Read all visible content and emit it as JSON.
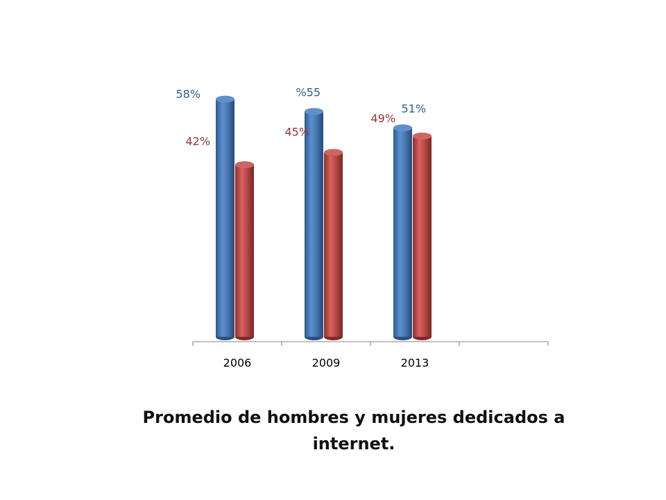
{
  "chart_data": {
    "type": "bar",
    "style": "3d-cylinder",
    "categories": [
      "2006",
      "2009",
      "2013",
      ""
    ],
    "series": [
      {
        "color": "#4F81BD",
        "label_color": "#2F5D8A",
        "values": [
          58,
          55,
          51,
          null
        ],
        "labels": [
          "58%",
          "%55",
          "51%",
          ""
        ]
      },
      {
        "color": "#C0504D",
        "label_color": "#943634",
        "values": [
          42,
          45,
          49,
          null
        ],
        "labels": [
          "42%",
          "45%",
          "49%",
          ""
        ]
      }
    ],
    "title": "Promedio de hombres y mujeres dedicados a internet.",
    "grid": false,
    "legend": "none"
  }
}
